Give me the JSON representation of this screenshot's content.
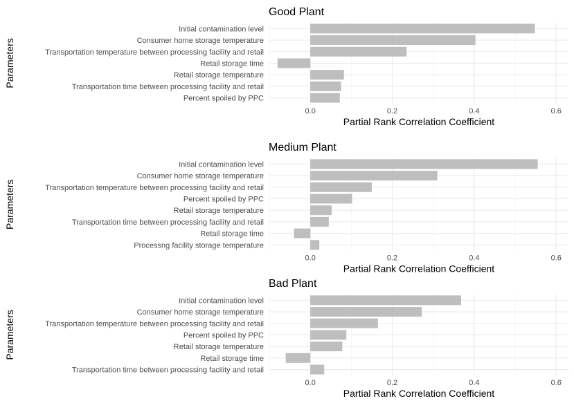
{
  "chart_data": [
    {
      "type": "bar",
      "orientation": "horizontal",
      "title": "Good Plant",
      "xlabel": "Partial Rank Correlation Coefficient",
      "ylabel": "Parameters",
      "xlim": [
        -0.1,
        0.63
      ],
      "xticks": [
        0.0,
        0.2,
        0.4,
        0.6
      ],
      "xtick_labels": [
        "0.0",
        "0.2",
        "0.4",
        "0.6"
      ],
      "grid": true,
      "bar_color": "#bebebe",
      "categories": [
        "Initial contamination level",
        "Consumer home storage temperature",
        "Transportation temperature between processing facility and retail",
        "Retail storage time",
        "Retail storage temperature",
        "Transportation time between processing facility and retail",
        "Percent spoiled by PPC"
      ],
      "values": [
        0.548,
        0.403,
        0.235,
        -0.08,
        0.082,
        0.075,
        0.072
      ]
    },
    {
      "type": "bar",
      "orientation": "horizontal",
      "title": "Medium Plant",
      "xlabel": "Partial Rank Correlation Coefficient",
      "ylabel": "Parameters",
      "xlim": [
        -0.1,
        0.63
      ],
      "xticks": [
        0.0,
        0.2,
        0.4,
        0.6
      ],
      "xtick_labels": [
        "0.0",
        "0.2",
        "0.4",
        "0.6"
      ],
      "grid": true,
      "bar_color": "#bebebe",
      "categories": [
        "Initial contamination level",
        "Consumer home storage temperature",
        "Transportation temperature between processing facility and retail",
        "Percent spoiled by PPC",
        "Retail storage temperature",
        "Transportation time between processing facility and retail",
        "Retail storage time",
        "Processng facility storage temperature"
      ],
      "values": [
        0.555,
        0.31,
        0.15,
        0.102,
        0.052,
        0.045,
        -0.04,
        0.022
      ]
    },
    {
      "type": "bar",
      "orientation": "horizontal",
      "title": "Bad Plant",
      "xlabel": "Partial Rank Correlation Coefficient",
      "ylabel": "Parameters",
      "xlim": [
        -0.1,
        0.63
      ],
      "xticks": [
        0.0,
        0.2,
        0.4,
        0.6
      ],
      "xtick_labels": [
        "0.0",
        "0.2",
        "0.4",
        "0.6"
      ],
      "grid": true,
      "bar_color": "#bebebe",
      "categories": [
        "Initial contamination level",
        "Consumer home storage temperature",
        "Transportation temperature between processing facility and retail",
        "Percent spoiled by PPC",
        "Retail storage temperature",
        "Retail storage time",
        "Transportation time between processing facility and retail"
      ],
      "values": [
        0.368,
        0.272,
        0.165,
        0.088,
        0.078,
        -0.06,
        0.034
      ]
    }
  ]
}
